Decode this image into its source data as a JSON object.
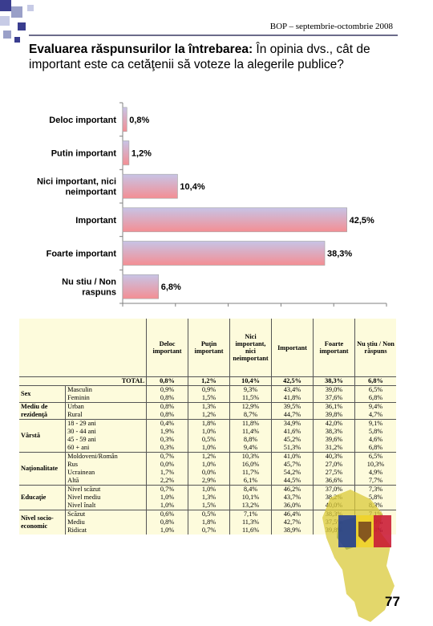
{
  "header": {
    "source": "BOP – septembrie-octombrie 2008"
  },
  "title": {
    "bold": "Evaluarea răspunsurilor la întrebarea:",
    "rest": " În opinia dvs., cât de important este ca cetăţenii să voteze la alegerile publice?"
  },
  "chart_data": {
    "type": "bar",
    "orientation": "horizontal",
    "categories": [
      "Deloc important",
      "Putin important",
      "Nici important, nici neimportant",
      "Important",
      "Foarte important",
      "Nu stiu / Non raspuns"
    ],
    "category_lines": [
      [
        "Deloc important"
      ],
      [
        "Putin important"
      ],
      [
        "Nici important, nici",
        "neimportant"
      ],
      [
        "Important"
      ],
      [
        "Foarte important"
      ],
      [
        "Nu stiu / Non",
        "raspuns"
      ]
    ],
    "values": [
      0.8,
      1.2,
      10.4,
      42.5,
      38.3,
      6.8
    ],
    "value_labels": [
      "0,8%",
      "1,2%",
      "10,4%",
      "42,5%",
      "38,3%",
      "6,8%"
    ],
    "xlim": [
      0,
      50
    ],
    "x_ticks": [
      "0%",
      "10%",
      "20%",
      "30%",
      "40%",
      "50%"
    ],
    "colors": {
      "bar_left": "#c7c4e6",
      "bar_right": "#f48e93",
      "axis": "#808080"
    }
  },
  "table": {
    "columns": [
      "Deloc important",
      "Puţin important",
      "Nici important, nici neimportant",
      "Important",
      "Foarte important",
      "Nu ştiu / Non răspuns"
    ],
    "total": {
      "label": "TOTAL",
      "values": [
        "0,8%",
        "1,2%",
        "10,4%",
        "42,5%",
        "38,3%",
        "6,8%"
      ]
    },
    "groups": [
      {
        "name": "Sex",
        "rows": [
          {
            "label": "Masculin",
            "values": [
              "0,9%",
              "0,9%",
              "9,3%",
              "43,4%",
              "39,0%",
              "6,5%"
            ]
          },
          {
            "label": "Feminin",
            "values": [
              "0,8%",
              "1,5%",
              "11,5%",
              "41,8%",
              "37,6%",
              "6,8%"
            ]
          }
        ]
      },
      {
        "name": "Mediu de rezidenţă",
        "rows": [
          {
            "label": "Urban",
            "values": [
              "0,8%",
              "1,3%",
              "12,9%",
              "39,5%",
              "36,1%",
              "9,4%"
            ]
          },
          {
            "label": "Rural",
            "values": [
              "0,8%",
              "1,2%",
              "8,7%",
              "44,7%",
              "39,8%",
              "4,7%"
            ]
          }
        ]
      },
      {
        "name": "Vârstă",
        "rows": [
          {
            "label": "18 - 29 ani",
            "values": [
              "0,4%",
              "1,8%",
              "11,8%",
              "34,9%",
              "42,0%",
              "9,1%"
            ]
          },
          {
            "label": "30 - 44 ani",
            "values": [
              "1,9%",
              "1,0%",
              "11,4%",
              "41,6%",
              "38,3%",
              "5,8%"
            ]
          },
          {
            "label": "45 - 59 ani",
            "values": [
              "0,3%",
              "0,5%",
              "8,8%",
              "45,2%",
              "39,6%",
              "4,6%"
            ]
          },
          {
            "label": "60 + ani",
            "values": [
              "0,3%",
              "1,0%",
              "9,4%",
              "51,3%",
              "31,2%",
              "6,8%"
            ]
          }
        ]
      },
      {
        "name": "Naţionalitate",
        "rows": [
          {
            "label": "Moldoveni/Român",
            "values": [
              "0,7%",
              "1,2%",
              "10,3%",
              "41,0%",
              "40,3%",
              "6,5%"
            ]
          },
          {
            "label": "Rus",
            "values": [
              "0,0%",
              "1,0%",
              "16,0%",
              "45,7%",
              "27,0%",
              "10,3%"
            ]
          },
          {
            "label": "Ucrainean",
            "values": [
              "1,7%",
              "0,0%",
              "11,7%",
              "54,2%",
              "27,5%",
              "4,9%"
            ]
          },
          {
            "label": "Altă",
            "values": [
              "2,2%",
              "2,9%",
              "6,1%",
              "44,5%",
              "36,6%",
              "7,7%"
            ]
          }
        ]
      },
      {
        "name": "Educaţie",
        "rows": [
          {
            "label": "Nivel scăzut",
            "values": [
              "0,7%",
              "1,0%",
              "8,4%",
              "46,2%",
              "37,0%",
              "7,3%"
            ]
          },
          {
            "label": "Nivel mediu",
            "values": [
              "1,0%",
              "1,3%",
              "10,1%",
              "43,7%",
              "38,2%",
              "5,8%"
            ]
          },
          {
            "label": "Nivel înalt",
            "values": [
              "1,0%",
              "1,5%",
              "13,2%",
              "36,0%",
              "40,0%",
              "8,3%"
            ]
          }
        ]
      },
      {
        "name": "Nivel socio-economic",
        "rows": [
          {
            "label": "Scăzut",
            "values": [
              "0,6%",
              "0,5%",
              "7,1%",
              "46,4%",
              "38,3%",
              "7,1%"
            ]
          },
          {
            "label": "Mediu",
            "values": [
              "0,8%",
              "1,8%",
              "11,3%",
              "42,7%",
              "37,5%",
              "5,9%"
            ]
          },
          {
            "label": "Ridicat",
            "values": [
              "1,0%",
              "0,7%",
              "11,6%",
              "38,9%",
              "39,8%",
              "8,4%"
            ]
          }
        ]
      }
    ]
  },
  "page_number": "77"
}
